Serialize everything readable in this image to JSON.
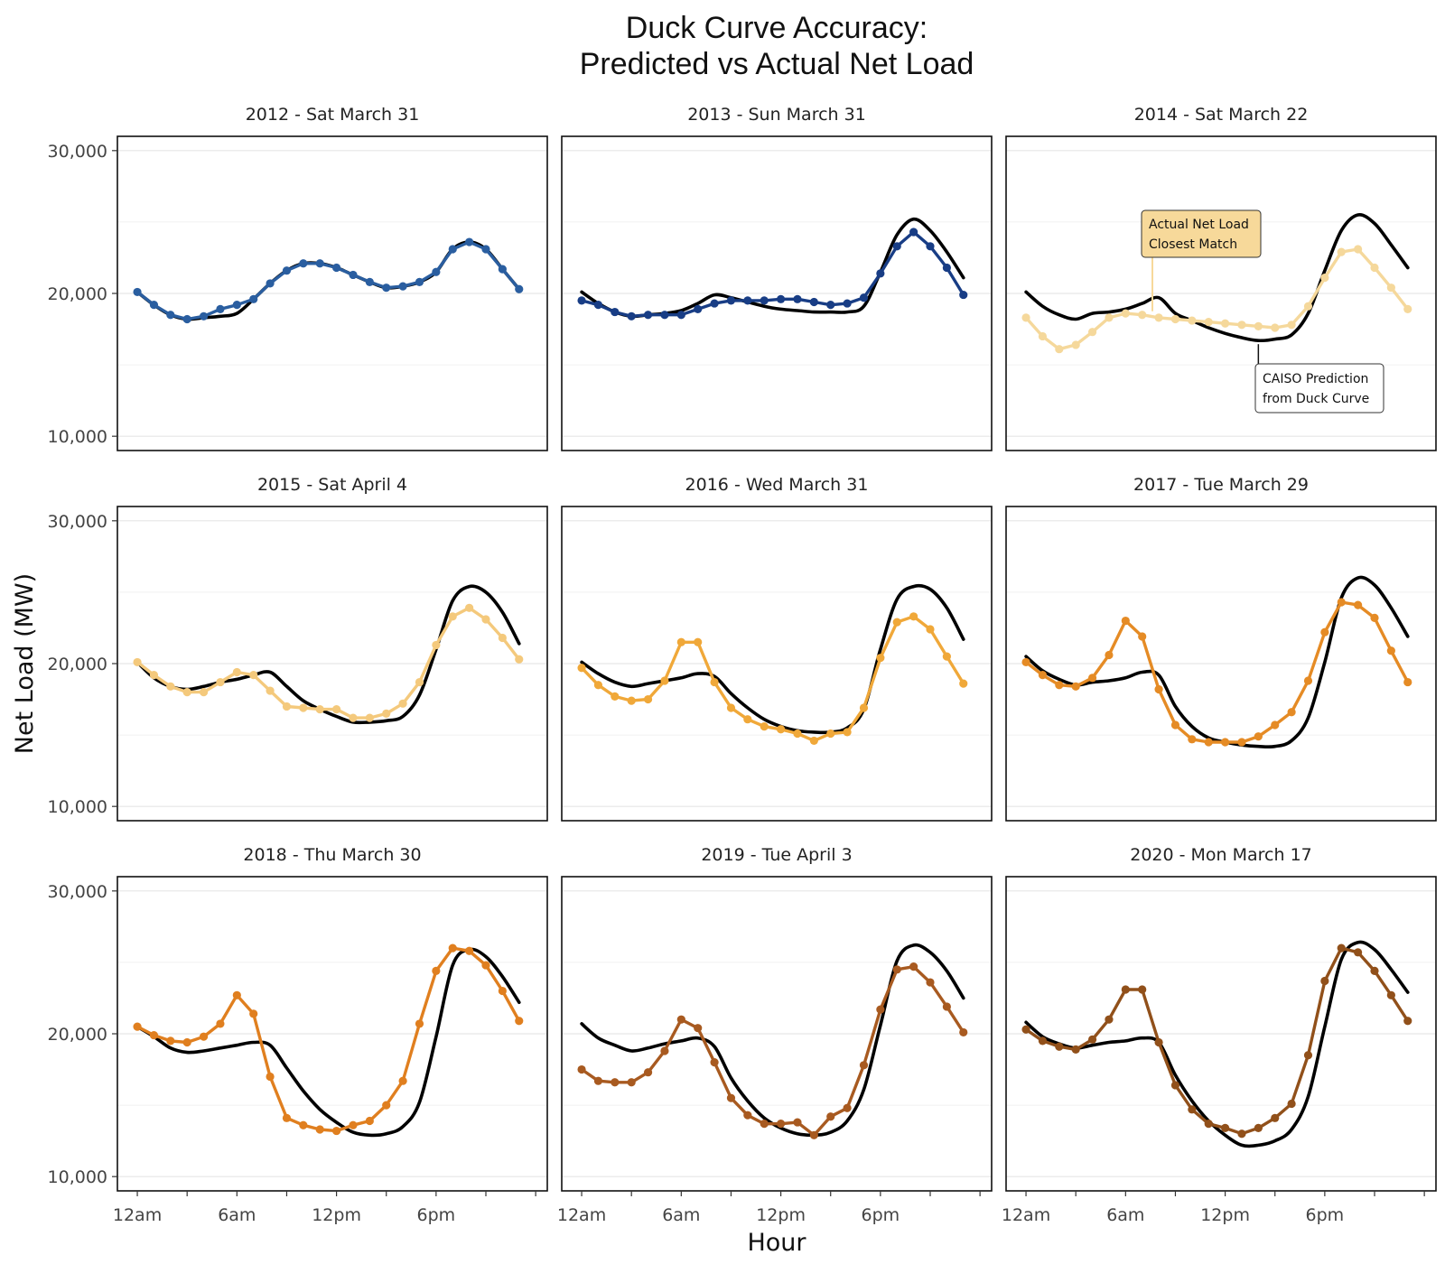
{
  "title_line1": "Duck Curve Accuracy:",
  "title_line2": "Predicted vs Actual Net Load",
  "chart_data": {
    "type": "line",
    "xlabel": "Hour",
    "ylabel": "Net Load (MW)",
    "x_tick_labels": [
      "12am",
      "6am",
      "12pm",
      "6pm"
    ],
    "x_tick_hours": [
      0,
      6,
      12,
      18
    ],
    "y_ticks": [
      10000,
      20000,
      30000
    ],
    "y_tick_labels": [
      "10,000",
      "20,000",
      "30,000"
    ],
    "ylim": [
      9000,
      31000
    ],
    "xlim": [
      -1.2,
      24.7
    ],
    "grid": "horizontal",
    "predicted_color": "#000000",
    "annotations": {
      "actual": {
        "line1": "Actual Net Load",
        "line2": "Closest Match",
        "fill": "#f7d99a"
      },
      "predicted": {
        "line1": "CAISO Prediction",
        "line2": "from Duck Curve",
        "fill": "#ffffff"
      }
    },
    "panels": [
      {
        "title": "2012 - Sat March 31",
        "color": "#2a5ea0",
        "actual": [
          20100,
          19200,
          18500,
          18200,
          18400,
          18900,
          19200,
          19600,
          20700,
          21600,
          22100,
          22100,
          21800,
          21300,
          20800,
          20400,
          20500,
          20800,
          21500,
          23100,
          23600,
          23100,
          21700,
          20300
        ],
        "predicted": [
          20100,
          19200,
          18500,
          18200,
          18300,
          18400,
          18600,
          19600,
          20700,
          21600,
          22100,
          22100,
          21800,
          21300,
          20800,
          20400,
          20500,
          20800,
          21500,
          23100,
          23600,
          23100,
          21700,
          20300
        ]
      },
      {
        "title": "2013 - Sun March 31",
        "color": "#183d85",
        "actual": [
          19500,
          19200,
          18700,
          18400,
          18500,
          18500,
          18500,
          18900,
          19300,
          19500,
          19500,
          19500,
          19600,
          19600,
          19400,
          19200,
          19300,
          19700,
          21400,
          23300,
          24300,
          23300,
          21800,
          19900
        ],
        "predicted": [
          20100,
          19300,
          18700,
          18400,
          18500,
          18600,
          18800,
          19300,
          19900,
          19700,
          19400,
          19100,
          18900,
          18800,
          18700,
          18700,
          18700,
          19100,
          21500,
          24100,
          25200,
          24400,
          22900,
          21100
        ]
      },
      {
        "title": "2014 - Sat March 22",
        "color": "#f5d89b",
        "actual": [
          18300,
          17000,
          16100,
          16400,
          17300,
          18300,
          18600,
          18500,
          18300,
          18200,
          18100,
          18000,
          17900,
          17800,
          17700,
          17600,
          17800,
          19100,
          21100,
          22900,
          23100,
          21800,
          20400,
          18900
        ],
        "predicted": [
          20100,
          19100,
          18500,
          18200,
          18600,
          18700,
          18900,
          19300,
          19700,
          18600,
          18100,
          17600,
          17200,
          16900,
          16700,
          16800,
          17100,
          18600,
          21600,
          24400,
          25500,
          24900,
          23400,
          21800
        ]
      },
      {
        "title": "2015 - Sat April 4",
        "color": "#f4c97c",
        "actual": [
          20100,
          19200,
          18400,
          18000,
          18000,
          18700,
          19400,
          19200,
          18100,
          17000,
          16900,
          16800,
          16800,
          16200,
          16200,
          16500,
          17200,
          18700,
          21300,
          23300,
          23900,
          23100,
          21800,
          20300
        ],
        "predicted": [
          20100,
          19000,
          18400,
          18200,
          18400,
          18700,
          18900,
          19200,
          19400,
          18400,
          17400,
          16800,
          16300,
          15900,
          15900,
          16000,
          16300,
          17800,
          21000,
          24400,
          25400,
          25000,
          23600,
          21400
        ]
      },
      {
        "title": "2016 - Wed March 31",
        "color": "#f0a839",
        "actual": [
          19700,
          18500,
          17700,
          17400,
          17500,
          18800,
          21500,
          21500,
          18700,
          16900,
          16100,
          15600,
          15400,
          15100,
          14600,
          15100,
          15200,
          16900,
          20400,
          22900,
          23300,
          22400,
          20500,
          18600
        ],
        "predicted": [
          20100,
          19300,
          18700,
          18400,
          18600,
          18800,
          19000,
          19300,
          19100,
          17900,
          16900,
          16100,
          15600,
          15300,
          15200,
          15200,
          15500,
          16800,
          21000,
          24500,
          25400,
          25200,
          23900,
          21700
        ]
      },
      {
        "title": "2017 - Tue March 29",
        "color": "#e58b25",
        "actual": [
          20100,
          19200,
          18500,
          18400,
          19000,
          20600,
          23000,
          21900,
          18200,
          15700,
          14700,
          14500,
          14500,
          14500,
          14900,
          15700,
          16600,
          18800,
          22200,
          24300,
          24100,
          23200,
          20900,
          18700
        ],
        "predicted": [
          20500,
          19500,
          18900,
          18500,
          18700,
          18800,
          19000,
          19400,
          19200,
          17000,
          15600,
          14800,
          14500,
          14300,
          14200,
          14200,
          14600,
          16200,
          20100,
          24600,
          26000,
          25500,
          23900,
          21900
        ]
      },
      {
        "title": "2018 - Thu March 30",
        "color": "#e07f1f",
        "actual": [
          20500,
          19900,
          19500,
          19400,
          19800,
          20700,
          22700,
          21400,
          17000,
          14100,
          13600,
          13300,
          13200,
          13600,
          13900,
          15000,
          16700,
          20700,
          24400,
          26000,
          25800,
          24800,
          23000,
          20900
        ],
        "predicted": [
          20500,
          19800,
          19000,
          18700,
          18800,
          19000,
          19200,
          19400,
          19200,
          17600,
          16000,
          14700,
          13800,
          13100,
          12900,
          13000,
          13500,
          15200,
          19800,
          24800,
          25900,
          25400,
          24000,
          22200
        ]
      },
      {
        "title": "2019 - Tue April 3",
        "color": "#a85a20",
        "actual": [
          17500,
          16700,
          16600,
          16600,
          17300,
          18800,
          21000,
          20400,
          18000,
          15500,
          14300,
          13700,
          13700,
          13800,
          12900,
          14200,
          14800,
          17800,
          21700,
          24500,
          24700,
          23600,
          21900,
          20100
        ],
        "predicted": [
          20700,
          19700,
          19200,
          18800,
          19000,
          19300,
          19500,
          19700,
          19100,
          16900,
          15300,
          14100,
          13400,
          13000,
          12900,
          13100,
          13900,
          16100,
          20600,
          25100,
          26200,
          25700,
          24400,
          22500
        ]
      },
      {
        "title": "2020 - Mon March 17",
        "color": "#91501a",
        "actual": [
          20300,
          19500,
          19100,
          18900,
          19600,
          21000,
          23100,
          23100,
          19400,
          16400,
          14700,
          13700,
          13400,
          13000,
          13400,
          14100,
          15100,
          18500,
          23700,
          26000,
          25700,
          24400,
          22700,
          20900
        ],
        "predicted": [
          20800,
          19800,
          19300,
          19000,
          19200,
          19400,
          19500,
          19700,
          19400,
          17100,
          15300,
          13900,
          12900,
          12200,
          12200,
          12500,
          13300,
          15600,
          20500,
          25200,
          26400,
          25900,
          24500,
          22900
        ]
      }
    ]
  }
}
